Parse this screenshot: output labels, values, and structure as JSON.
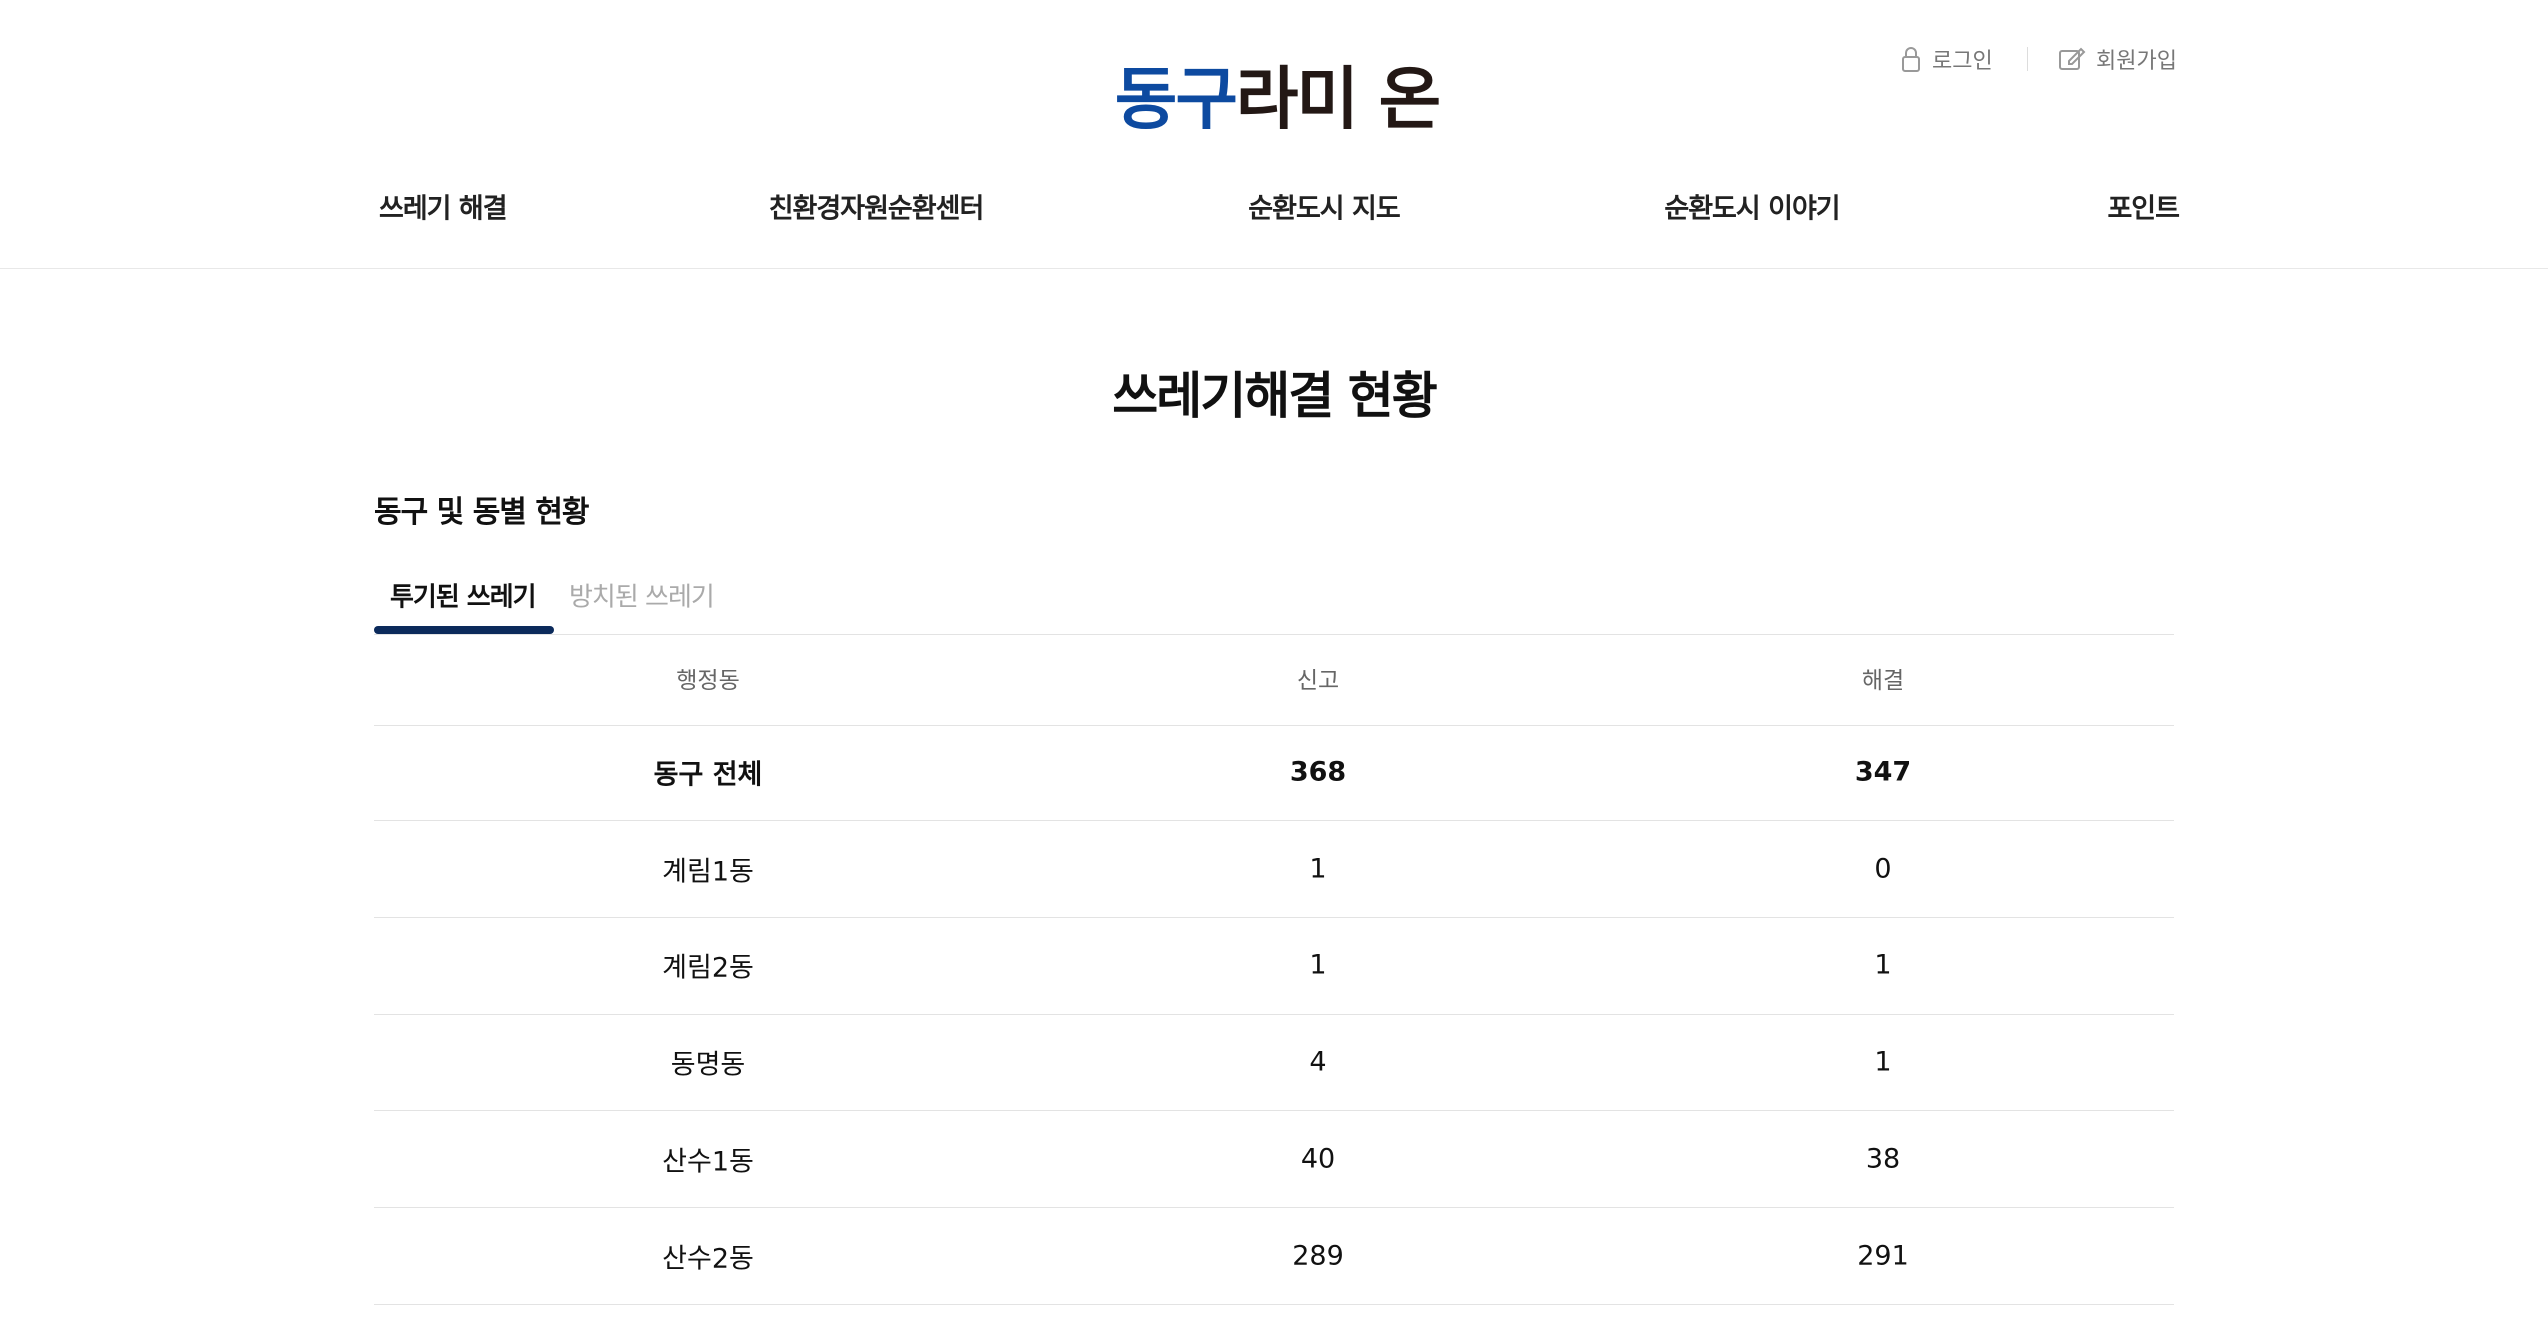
{
  "header": {
    "logo": {
      "accent": "동구",
      "rest": "라미 온"
    },
    "util": [
      "로그인",
      "회원가입"
    ],
    "nav": [
      "쓰레기 해결",
      "친환경자원순환센터",
      "순환도시 지도",
      "순환도시 이야기",
      "포인트"
    ]
  },
  "title": "쓰레기해결 현황",
  "section": "동구 및 동별 현황",
  "tabs": [
    "투기된 쓰레기",
    "방치된 쓰레기"
  ],
  "table": {
    "columns": [
      "행정동",
      "신고",
      "해결"
    ],
    "rows": [
      [
        "동구 전체",
        368,
        347
      ],
      [
        "계림1동",
        1,
        0
      ],
      [
        "계림2동",
        1,
        1
      ],
      [
        "동명동",
        4,
        1
      ],
      [
        "산수1동",
        40,
        38
      ],
      [
        "산수2동",
        289,
        291
      ]
    ]
  }
}
